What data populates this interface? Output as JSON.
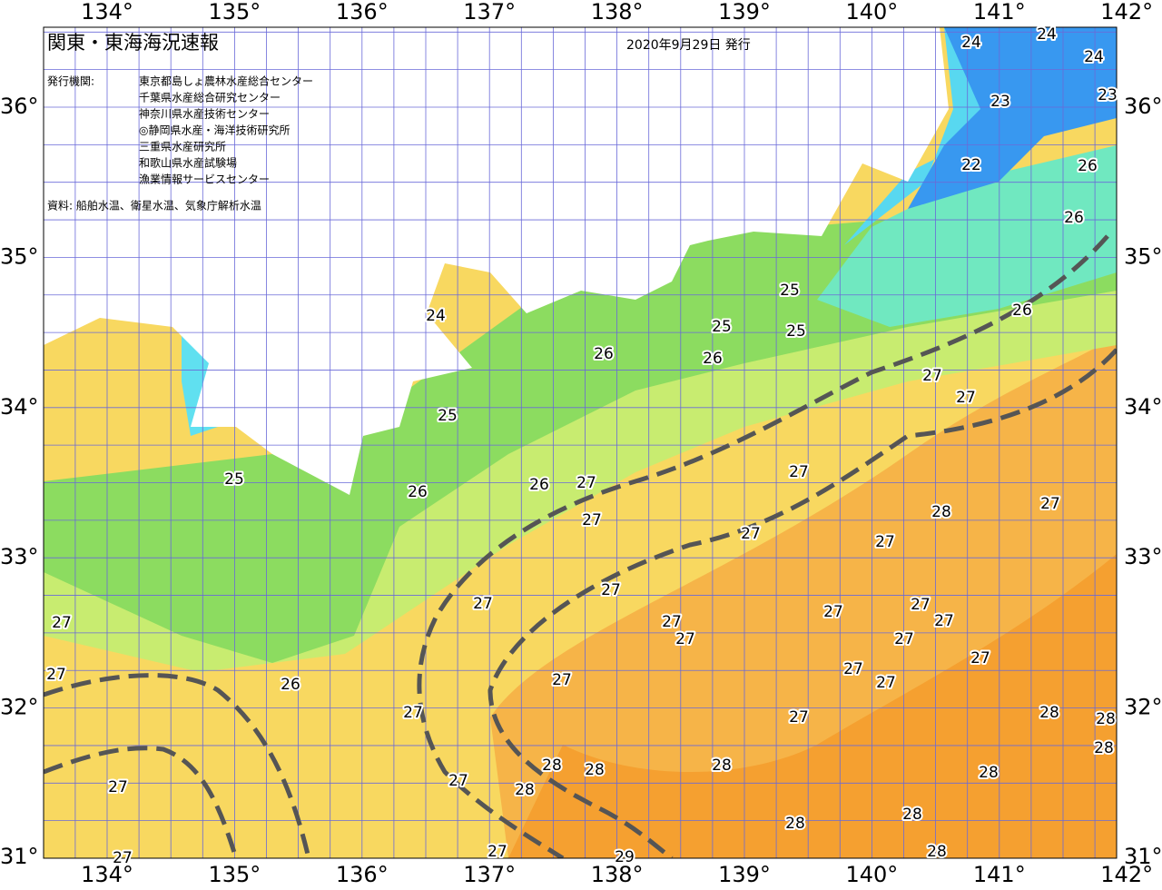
{
  "header": {
    "title": "関東・東海海況速報",
    "issued": "2020年9月29日 発行",
    "issuer_label": "発行機関:",
    "issuers": [
      "東京都島しょ農林水産総合センター",
      "千葉県水産総合研究センター",
      "神奈川県水産技術センター",
      "◎静岡県水産・海洋技術研究所",
      "三重県水産研究所",
      "和歌山県水産試験場",
      "漁業情報サービスセンター"
    ],
    "source": "資料: 船舶水温、衛星水温、気象庁解析水温"
  },
  "longitude_labels": [
    "134°",
    "135°",
    "136°",
    "137°",
    "138°",
    "139°",
    "140°",
    "141°",
    "142°"
  ],
  "latitude_labels": [
    "36°",
    "35°",
    "34°",
    "33°",
    "32°",
    "31°"
  ],
  "contour_labels": [
    "24",
    "24",
    "24",
    "23",
    "23",
    "22",
    "26",
    "26",
    "26",
    "25",
    "25",
    "25",
    "26",
    "26",
    "24",
    "27",
    "27",
    "25",
    "25",
    "26",
    "26",
    "27",
    "27",
    "27",
    "28",
    "27",
    "27",
    "27",
    "27",
    "27",
    "27",
    "27",
    "27",
    "27",
    "27",
    "27",
    "27",
    "27",
    "27",
    "27",
    "27",
    "27",
    "26",
    "27",
    "27",
    "28",
    "28",
    "28",
    "28",
    "28",
    "28",
    "28",
    "27",
    "28",
    "27",
    "28",
    "28",
    "27",
    "27",
    "29",
    "28"
  ]
}
